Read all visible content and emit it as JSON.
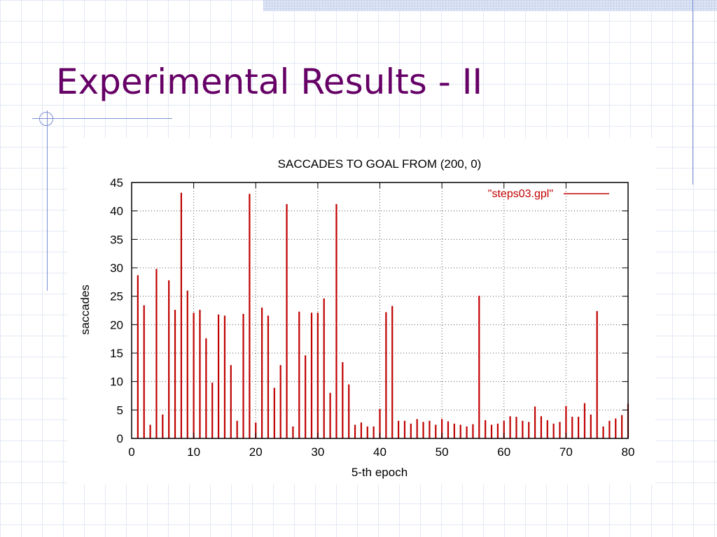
{
  "slide": {
    "title": "Experimental Results - II"
  },
  "chart_data": {
    "type": "bar",
    "title": "SACCADES TO GOAL FROM (200, 0)",
    "xlabel": "5-th epoch",
    "ylabel": "saccades",
    "xlim": [
      0,
      80
    ],
    "ylim": [
      0,
      45
    ],
    "xticks": [
      "0",
      "10",
      "20",
      "30",
      "40",
      "50",
      "60",
      "70",
      "80"
    ],
    "yticks": [
      "0",
      "5",
      "10",
      "15",
      "20",
      "25",
      "30",
      "35",
      "40",
      "45"
    ],
    "grid": true,
    "legend_position": "top-right",
    "bar_color": "#c00000",
    "series": [
      {
        "name": "\"steps03.gpl\"",
        "x": [
          1,
          2,
          3,
          4,
          5,
          6,
          7,
          8,
          9,
          10,
          11,
          12,
          13,
          14,
          15,
          16,
          17,
          18,
          19,
          20,
          21,
          22,
          23,
          24,
          25,
          26,
          27,
          28,
          29,
          30,
          31,
          32,
          33,
          34,
          35,
          36,
          37,
          38,
          39,
          40,
          41,
          42,
          43,
          44,
          45,
          46,
          47,
          48,
          49,
          50,
          51,
          52,
          53,
          54,
          55,
          56,
          57,
          58,
          59,
          60,
          61,
          62,
          63,
          64,
          65,
          66,
          67,
          68,
          69,
          70,
          71,
          72,
          73,
          74,
          75,
          76,
          77,
          78,
          79,
          80
        ],
        "values": [
          28.7,
          23.4,
          2.4,
          29.8,
          4.2,
          27.8,
          22.6,
          43.2,
          26,
          22.1,
          22.6,
          17.6,
          9.8,
          21.8,
          21.6,
          12.9,
          3.1,
          21.9,
          43,
          2.8,
          23,
          21.6,
          8.9,
          12.9,
          41.2,
          2.1,
          22.3,
          14.6,
          22.1,
          22.1,
          24.6,
          8,
          41.2,
          13.4,
          9.5,
          2.4,
          2.8,
          2.1,
          2.1,
          5.2,
          22.2,
          23.3,
          3.1,
          3.1,
          2.6,
          3.4,
          2.9,
          3.1,
          2.4,
          3.4,
          3,
          2.6,
          2.4,
          2.1,
          2.5,
          25.1,
          3.2,
          2.4,
          2.6,
          3.1,
          3.9,
          3.8,
          3.1,
          2.9,
          5.6,
          3.9,
          3.2,
          2.6,
          2.9,
          5.7,
          3.8,
          3.8,
          6.2,
          4.2,
          22.4,
          2.1,
          3.1,
          3.5,
          4.1,
          6.1
        ]
      }
    ]
  }
}
